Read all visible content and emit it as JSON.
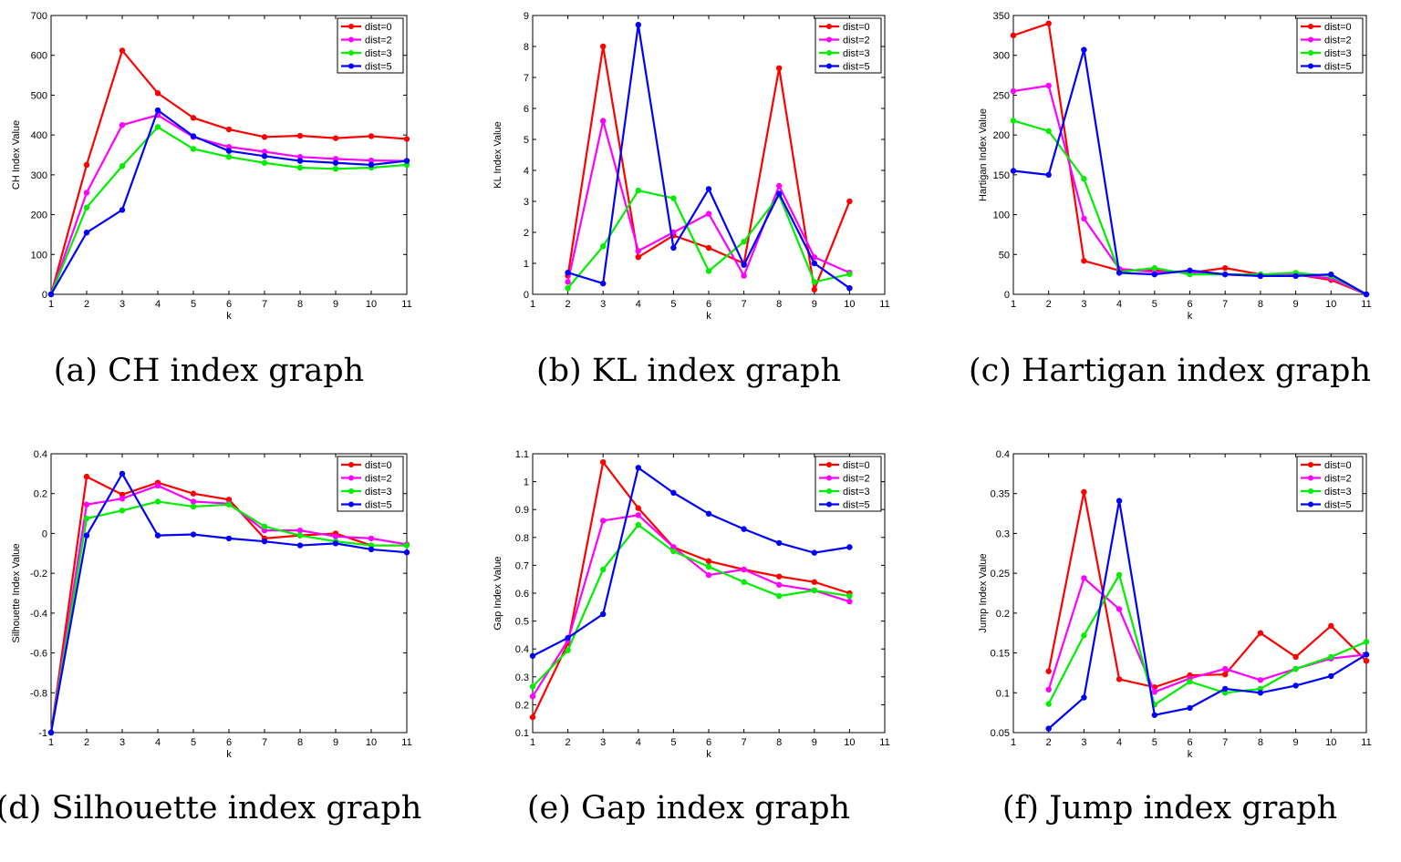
{
  "legend_labels": [
    "dist=0",
    "dist=2",
    "dist=3",
    "dist=5"
  ],
  "series_colors": [
    "#ff0000",
    "#ff00ff",
    "#00ee00",
    "#0000ff"
  ],
  "chart_data": [
    {
      "type": "line",
      "caption": "(a) CH index graph",
      "xlabel": "k",
      "ylabel": "CH Index Value",
      "xlim": [
        1,
        11
      ],
      "ylim": [
        0,
        700
      ],
      "xticks": [
        "1",
        "2",
        "3",
        "4",
        "5",
        "6",
        "7",
        "8",
        "9",
        "10",
        "11"
      ],
      "yticks": [
        "0",
        "100",
        "200",
        "300",
        "400",
        "500",
        "600",
        "700"
      ],
      "legend": "top-right",
      "grid": false,
      "x": [
        1,
        2,
        3,
        4,
        5,
        6,
        7,
        8,
        9,
        10,
        11
      ],
      "series": [
        {
          "name": "dist=0",
          "values": [
            0,
            325,
            612,
            505,
            443,
            414,
            395,
            398,
            392,
            397,
            390
          ]
        },
        {
          "name": "dist=2",
          "values": [
            0,
            255,
            425,
            450,
            395,
            370,
            358,
            345,
            340,
            336,
            335
          ]
        },
        {
          "name": "dist=3",
          "values": [
            0,
            218,
            322,
            420,
            365,
            345,
            330,
            318,
            315,
            318,
            325
          ]
        },
        {
          "name": "dist=5",
          "values": [
            0,
            155,
            212,
            462,
            397,
            360,
            347,
            335,
            330,
            325,
            335
          ]
        }
      ]
    },
    {
      "type": "line",
      "caption": "(b) KL index graph",
      "xlabel": "k",
      "ylabel": "KL Index Value",
      "xlim": [
        1,
        11
      ],
      "ylim": [
        0,
        9
      ],
      "xticks": [
        "1",
        "2",
        "3",
        "4",
        "5",
        "6",
        "7",
        "8",
        "9",
        "10",
        "11"
      ],
      "yticks": [
        "0",
        "1",
        "2",
        "3",
        "4",
        "5",
        "6",
        "7",
        "8",
        "9"
      ],
      "legend": "top-right",
      "grid": false,
      "x": [
        2,
        3,
        4,
        5,
        6,
        7,
        8,
        9,
        10
      ],
      "series": [
        {
          "name": "dist=0",
          "values": [
            0.6,
            8.0,
            1.2,
            1.9,
            1.5,
            1.0,
            7.3,
            0.15,
            3.0
          ]
        },
        {
          "name": "dist=2",
          "values": [
            0.4,
            5.6,
            1.4,
            2.0,
            2.6,
            0.6,
            3.5,
            1.2,
            0.7
          ]
        },
        {
          "name": "dist=3",
          "values": [
            0.2,
            1.55,
            3.35,
            3.1,
            0.75,
            1.7,
            3.2,
            0.4,
            0.65
          ]
        },
        {
          "name": "dist=5",
          "values": [
            0.7,
            0.35,
            8.7,
            1.5,
            3.4,
            0.95,
            3.25,
            1.0,
            0.2
          ]
        }
      ]
    },
    {
      "type": "line",
      "caption": "(c) Hartigan index graph",
      "xlabel": "k",
      "ylabel": "Hartigan Index Value",
      "xlim": [
        1,
        11
      ],
      "ylim": [
        0,
        350
      ],
      "xticks": [
        "1",
        "2",
        "3",
        "4",
        "5",
        "6",
        "7",
        "8",
        "9",
        "10",
        "11"
      ],
      "yticks": [
        "0",
        "50",
        "100",
        "150",
        "200",
        "250",
        "300",
        "350"
      ],
      "legend": "top-right",
      "grid": false,
      "x": [
        1,
        2,
        3,
        4,
        5,
        6,
        7,
        8,
        9,
        10,
        11
      ],
      "series": [
        {
          "name": "dist=0",
          "values": [
            325,
            340,
            42,
            30,
            30,
            27,
            33,
            25,
            25,
            18,
            0
          ]
        },
        {
          "name": "dist=2",
          "values": [
            255,
            262,
            95,
            32,
            28,
            28,
            25,
            23,
            25,
            20,
            0
          ]
        },
        {
          "name": "dist=3",
          "values": [
            218,
            205,
            145,
            28,
            33,
            25,
            25,
            25,
            27,
            23,
            0
          ]
        },
        {
          "name": "dist=5",
          "values": [
            155,
            150,
            307,
            27,
            25,
            30,
            25,
            23,
            23,
            25,
            0
          ]
        }
      ]
    },
    {
      "type": "line",
      "caption": "(d) Silhouette index graph",
      "xlabel": "k",
      "ylabel": "Silhouette Index Value",
      "xlim": [
        1,
        11
      ],
      "ylim": [
        -1,
        0.4
      ],
      "xticks": [
        "1",
        "2",
        "3",
        "4",
        "5",
        "6",
        "7",
        "8",
        "9",
        "10",
        "11"
      ],
      "yticks": [
        "-1",
        "-0.8",
        "-0.6",
        "-0.4",
        "-0.2",
        "0",
        "0.2",
        "0.4"
      ],
      "legend": "top-right",
      "grid": false,
      "x": [
        1,
        2,
        3,
        4,
        5,
        6,
        7,
        8,
        9,
        10,
        11
      ],
      "series": [
        {
          "name": "dist=0",
          "values": [
            -1,
            0.285,
            0.195,
            0.255,
            0.2,
            0.17,
            -0.025,
            -0.01,
            0.0,
            -0.06,
            -0.06
          ]
        },
        {
          "name": "dist=2",
          "values": [
            -1,
            0.145,
            0.175,
            0.24,
            0.16,
            0.15,
            0.015,
            0.015,
            -0.015,
            -0.025,
            -0.055
          ]
        },
        {
          "name": "dist=3",
          "values": [
            -1,
            0.075,
            0.115,
            0.16,
            0.135,
            0.145,
            0.035,
            -0.01,
            -0.04,
            -0.06,
            -0.06
          ]
        },
        {
          "name": "dist=5",
          "values": [
            -1,
            -0.01,
            0.3,
            -0.01,
            -0.005,
            -0.025,
            -0.04,
            -0.06,
            -0.05,
            -0.08,
            -0.095
          ]
        }
      ]
    },
    {
      "type": "line",
      "caption": "(e) Gap index graph",
      "xlabel": "k",
      "ylabel": "Gap Index Value",
      "xlim": [
        1,
        11
      ],
      "ylim": [
        0.1,
        1.1
      ],
      "xticks": [
        "1",
        "2",
        "3",
        "4",
        "5",
        "6",
        "7",
        "8",
        "9",
        "10",
        "11"
      ],
      "yticks": [
        "0.1",
        "0.2",
        "0.3",
        "0.4",
        "0.5",
        "0.6",
        "0.7",
        "0.8",
        "0.9",
        "1",
        "1.1"
      ],
      "legend": "top-right",
      "grid": false,
      "x": [
        1,
        2,
        3,
        4,
        5,
        6,
        7,
        8,
        9,
        10
      ],
      "series": [
        {
          "name": "dist=0",
          "values": [
            0.155,
            0.42,
            1.07,
            0.905,
            0.765,
            0.715,
            0.685,
            0.66,
            0.64,
            0.6
          ]
        },
        {
          "name": "dist=2",
          "values": [
            0.23,
            0.43,
            0.86,
            0.88,
            0.765,
            0.665,
            0.685,
            0.63,
            0.61,
            0.57
          ]
        },
        {
          "name": "dist=3",
          "values": [
            0.265,
            0.395,
            0.685,
            0.845,
            0.75,
            0.695,
            0.64,
            0.59,
            0.61,
            0.59
          ]
        },
        {
          "name": "dist=5",
          "values": [
            0.375,
            0.44,
            0.525,
            1.05,
            0.96,
            0.885,
            0.83,
            0.78,
            0.745,
            0.765
          ]
        }
      ]
    },
    {
      "type": "line",
      "caption": "(f) Jump index graph",
      "xlabel": "k",
      "ylabel": "Jump Index Value",
      "xlim": [
        1,
        11
      ],
      "ylim": [
        0.05,
        0.4
      ],
      "xticks": [
        "1",
        "2",
        "3",
        "4",
        "5",
        "6",
        "7",
        "8",
        "9",
        "10",
        "11"
      ],
      "yticks": [
        "0.05",
        "0.1",
        "0.15",
        "0.2",
        "0.25",
        "0.3",
        "0.35",
        "0.4"
      ],
      "legend": "top-right",
      "grid": false,
      "x": [
        2,
        3,
        4,
        5,
        6,
        7,
        8,
        9,
        10,
        11
      ],
      "series": [
        {
          "name": "dist=0",
          "values": [
            0.127,
            0.352,
            0.117,
            0.107,
            0.122,
            0.123,
            0.175,
            0.145,
            0.184,
            0.14
          ]
        },
        {
          "name": "dist=2",
          "values": [
            0.104,
            0.244,
            0.205,
            0.101,
            0.118,
            0.13,
            0.116,
            0.13,
            0.143,
            0.148
          ]
        },
        {
          "name": "dist=3",
          "values": [
            0.086,
            0.172,
            0.248,
            0.085,
            0.114,
            0.1,
            0.105,
            0.13,
            0.145,
            0.164
          ]
        },
        {
          "name": "dist=5",
          "values": [
            0.055,
            0.094,
            0.341,
            0.072,
            0.081,
            0.105,
            0.1,
            0.109,
            0.121,
            0.148
          ]
        }
      ]
    }
  ]
}
